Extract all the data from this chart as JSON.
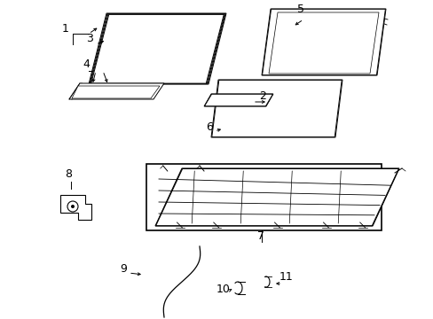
{
  "background_color": "#ffffff",
  "line_color": "#000000",
  "label_color": "#000000",
  "figsize": [
    4.89,
    3.6
  ],
  "dpi": 100
}
